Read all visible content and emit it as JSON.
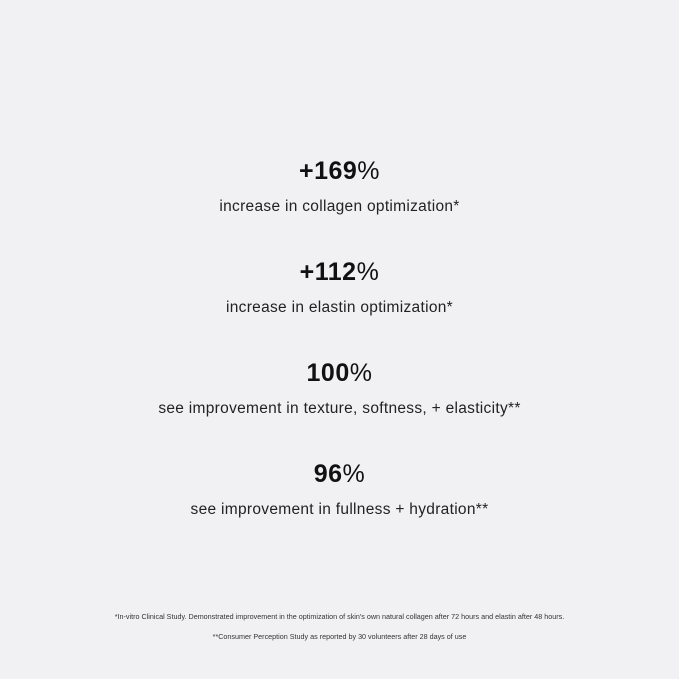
{
  "stats": [
    {
      "value": "+169",
      "unit": "%",
      "label": "increase in collagen optimization*"
    },
    {
      "value": "+112",
      "unit": "%",
      "label": "increase in elastin optimization*"
    },
    {
      "value": "100",
      "unit": "%",
      "label": "see improvement in texture, softness, + elasticity**"
    },
    {
      "value": "96",
      "unit": "%",
      "label": "see improvement in fullness + hydration**"
    }
  ],
  "footnotes": [
    "*In-vitro Clinical Study. Demonstrated improvement in the optimization of skin's own natural collagen after 72 hours and elastin after 48 hours.",
    "**Consumer Perception Study as reported by 30 volunteers after 28 days of use"
  ],
  "colors": {
    "background": "#f1f1f3",
    "text": "#111111"
  }
}
